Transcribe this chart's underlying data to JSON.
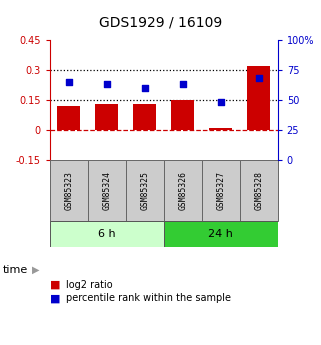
{
  "title": "GDS1929 / 16109",
  "samples": [
    "GSM85323",
    "GSM85324",
    "GSM85325",
    "GSM85326",
    "GSM85327",
    "GSM85328"
  ],
  "log2_ratio": [
    0.12,
    0.13,
    0.13,
    0.15,
    0.01,
    0.32
  ],
  "percentile_rank": [
    65,
    63,
    60,
    63,
    48,
    68
  ],
  "left_ylim": [
    -0.15,
    0.45
  ],
  "right_ylim": [
    0,
    100
  ],
  "left_yticks": [
    -0.15,
    0,
    0.15,
    0.3,
    0.45
  ],
  "right_yticks": [
    0,
    25,
    50,
    75,
    100
  ],
  "left_ytick_labels": [
    "-0.15",
    "0",
    "0.15",
    "0.3",
    "0.45"
  ],
  "right_ytick_labels": [
    "0",
    "25",
    "50",
    "75",
    "100%"
  ],
  "hlines_black": [
    0.15,
    0.3
  ],
  "hline_red": 0,
  "bar_color": "#cc0000",
  "dot_color": "#0000cc",
  "group_6h_label": "6 h",
  "group_24h_label": "24 h",
  "group_6h_color": "#ccffcc",
  "group_24h_color": "#33cc33",
  "time_label": "time",
  "legend_log2": "log2 ratio",
  "legend_pct": "percentile rank within the sample",
  "left_axis_color": "#cc0000",
  "right_axis_color": "#0000cc",
  "bar_width": 0.6,
  "bg_color": "white"
}
